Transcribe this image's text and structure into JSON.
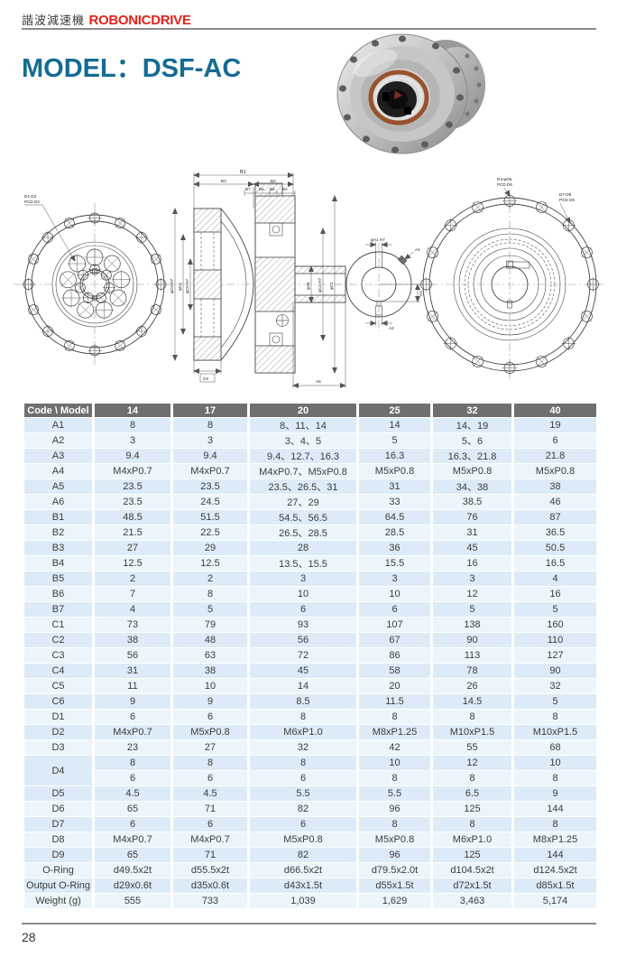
{
  "header": {
    "brand_cn": "諧波減速機",
    "brand_en": "ROBONICDRIVE"
  },
  "title": "MODEL：DSF-AC",
  "page_number": "28",
  "drawings": {
    "left_view": {
      "label_l1": "D1-D2",
      "label_l2": "PCD D3"
    },
    "section": {
      "b1": "B1",
      "b2": "B2",
      "b3": "B3",
      "b4": "B4",
      "b5": "B5",
      "b6": "B6",
      "b7": "B7",
      "c3": "φC3 H7",
      "c4": "φC4",
      "c5": "φC5 H7",
      "a5": "φA5",
      "c2": "φC2 H7",
      "c1": "φC1",
      "c6": "C6",
      "a6": "A6"
    },
    "detail": {
      "a1": "φA1 H7",
      "a2": "A2",
      "a3": "A3",
      "a4": "A4"
    },
    "right_view": {
      "label1_l1": "D4-φD5",
      "label1_l2": "PCD D6",
      "label2_l1": "D7-D8",
      "label2_l2": "PCD D9"
    }
  },
  "table": {
    "columns": [
      "Code \\ Model",
      "14",
      "17",
      "20",
      "25",
      "32",
      "40"
    ],
    "rows": [
      {
        "code": "A1",
        "values": [
          "8",
          "8",
          "8、11、14",
          "14",
          "14、19",
          "19"
        ]
      },
      {
        "code": "A2",
        "values": [
          "3",
          "3",
          "3、4、5",
          "5",
          "5、6",
          "6"
        ]
      },
      {
        "code": "A3",
        "values": [
          "9.4",
          "9.4",
          "9.4、12.7、16.3",
          "16.3",
          "16.3、21.8",
          "21.8"
        ]
      },
      {
        "code": "A4",
        "values": [
          "M4xP0.7",
          "M4xP0.7",
          "M4xP0.7、M5xP0.8",
          "M5xP0.8",
          "M5xP0.8",
          "M5xP0.8"
        ]
      },
      {
        "code": "A5",
        "values": [
          "23.5",
          "23.5",
          "23.5、26.5、31",
          "31",
          "34、38",
          "38"
        ]
      },
      {
        "code": "A6",
        "values": [
          "23.5",
          "24.5",
          "27、29",
          "33",
          "38.5",
          "46"
        ]
      },
      {
        "code": "B1",
        "values": [
          "48.5",
          "51.5",
          "54.5、56.5",
          "64.5",
          "76",
          "87"
        ]
      },
      {
        "code": "B2",
        "values": [
          "21.5",
          "22.5",
          "26.5、28.5",
          "28.5",
          "31",
          "36.5"
        ]
      },
      {
        "code": "B3",
        "values": [
          "27",
          "29",
          "28",
          "36",
          "45",
          "50.5"
        ]
      },
      {
        "code": "B4",
        "values": [
          "12.5",
          "12.5",
          "13.5、15.5",
          "15.5",
          "16",
          "16.5"
        ]
      },
      {
        "code": "B5",
        "values": [
          "2",
          "2",
          "3",
          "3",
          "3",
          "4"
        ]
      },
      {
        "code": "B6",
        "values": [
          "7",
          "8",
          "10",
          "10",
          "12",
          "16"
        ]
      },
      {
        "code": "B7",
        "values": [
          "4",
          "5",
          "6",
          "6",
          "5",
          "5"
        ]
      },
      {
        "code": "C1",
        "values": [
          "73",
          "79",
          "93",
          "107",
          "138",
          "160"
        ]
      },
      {
        "code": "C2",
        "values": [
          "38",
          "48",
          "56",
          "67",
          "90",
          "110"
        ]
      },
      {
        "code": "C3",
        "values": [
          "56",
          "63",
          "72",
          "86",
          "113",
          "127"
        ]
      },
      {
        "code": "C4",
        "values": [
          "31",
          "38",
          "45",
          "58",
          "78",
          "90"
        ]
      },
      {
        "code": "C5",
        "values": [
          "11",
          "10",
          "14",
          "20",
          "26",
          "32"
        ]
      },
      {
        "code": "C6",
        "values": [
          "9",
          "9",
          "8.5",
          "11.5",
          "14.5",
          "5"
        ]
      },
      {
        "code": "D1",
        "values": [
          "6",
          "6",
          "8",
          "8",
          "8",
          "8"
        ]
      },
      {
        "code": "D2",
        "values": [
          "M4xP0.7",
          "M5xP0.8",
          "M6xP1.0",
          "M8xP1.25",
          "M10xP1.5",
          "M10xP1.5"
        ]
      },
      {
        "code": "D3",
        "values": [
          "23",
          "27",
          "32",
          "42",
          "55",
          "68"
        ]
      },
      {
        "code": "D4",
        "rowspan": 2,
        "values": [
          "8",
          "8",
          "8",
          "10",
          "12",
          "10"
        ]
      },
      {
        "code": null,
        "values": [
          "6",
          "6",
          "6",
          "8",
          "8",
          "8"
        ]
      },
      {
        "code": "D5",
        "values": [
          "4.5",
          "4.5",
          "5.5",
          "5.5",
          "6.5",
          "9"
        ]
      },
      {
        "code": "D6",
        "values": [
          "65",
          "71",
          "82",
          "96",
          "125",
          "144"
        ]
      },
      {
        "code": "D7",
        "values": [
          "6",
          "6",
          "6",
          "8",
          "8",
          "8"
        ]
      },
      {
        "code": "D8",
        "values": [
          "M4xP0.7",
          "M4xP0.7",
          "M5xP0.8",
          "M5xP0.8",
          "M6xP1.0",
          "M8xP1.25"
        ]
      },
      {
        "code": "D9",
        "values": [
          "65",
          "71",
          "82",
          "96",
          "125",
          "144"
        ]
      },
      {
        "code": "O-Ring",
        "values": [
          "d49.5x2t",
          "d55.5x2t",
          "d66.5x2t",
          "d79.5x2.0t",
          "d104.5x2t",
          "d124.5x2t"
        ]
      },
      {
        "code": "Output O-Ring",
        "values": [
          "d29x0.6t",
          "d35x0.6t",
          "d43x1.5t",
          "d55x1.5t",
          "d72x1.5t",
          "d85x1.5t"
        ]
      },
      {
        "code": "Weight (g)",
        "values": [
          "555",
          "733",
          "1,039",
          "1,629",
          "3,463",
          "5,174"
        ]
      }
    ]
  }
}
